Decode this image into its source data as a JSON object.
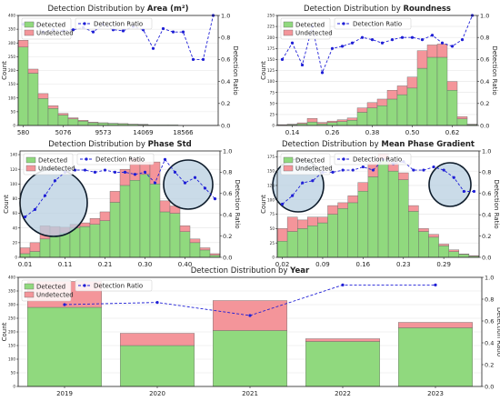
{
  "colors": {
    "detected": "#90d97e",
    "undetected": "#f4959a",
    "ratio": "#1f1fd6",
    "circle_fill": "#b8cfe0",
    "circle_stroke": "#0d1b2a"
  },
  "chart_data": [
    {
      "type": "bar",
      "title_prefix": "Detection Distribution by ",
      "title_bold": "Area (m²)",
      "xlabel": "",
      "ylabel": "Count",
      "ylabel_right": "Detection Ratio",
      "legend": [
        "Detected",
        "Undetected",
        "Detection Ratio"
      ],
      "legend_position": "top-left",
      "grid": true,
      "x_tick_labels": [
        "580",
        "5076",
        "9573",
        "14069",
        "18566"
      ],
      "x_tick_bins": [
        0,
        4,
        8,
        12,
        16
      ],
      "ylim": [
        0,
        400
      ],
      "y_ticks": [
        0,
        50,
        100,
        150,
        200,
        250,
        300,
        350,
        400
      ],
      "ratio_ticks": [
        "0.0",
        "0.2",
        "0.4",
        "0.6",
        "0.8",
        "1.0"
      ],
      "series": [
        {
          "name": "Detected",
          "values": [
            285,
            190,
            98,
            62,
            38,
            24,
            16,
            10,
            9,
            7,
            6,
            4,
            3,
            2,
            2,
            2,
            1,
            1,
            1,
            1
          ]
        },
        {
          "name": "Undetected",
          "values": [
            25,
            15,
            18,
            10,
            6,
            4,
            3,
            2,
            1,
            1,
            1,
            1,
            1,
            0,
            0,
            0,
            0,
            0,
            0,
            0
          ]
        }
      ],
      "ratio": [
        0.92,
        0.93,
        0.85,
        0.87,
        0.86,
        0.87,
        0.89,
        0.85,
        0.92,
        0.87,
        0.86,
        0.9,
        0.87,
        0.7,
        0.88,
        0.85,
        0.85,
        0.6,
        0.6,
        1.0
      ]
    },
    {
      "type": "bar",
      "title_prefix": "Detection Distribution by ",
      "title_bold": "Roundness",
      "xlabel": "",
      "ylabel": "Count",
      "ylabel_right": "Detection Ratio",
      "legend": [
        "Detected",
        "Undetected",
        "Detection Ratio"
      ],
      "legend_position": "top-left",
      "grid": true,
      "x_tick_labels": [
        "0.14",
        "0.26",
        "0.38",
        "0.50",
        "0.62"
      ],
      "x_tick_bins": [
        1,
        5,
        9,
        13,
        17
      ],
      "ylim": [
        0,
        250
      ],
      "y_ticks": [
        0,
        25,
        50,
        75,
        100,
        125,
        150,
        175,
        200,
        225,
        250
      ],
      "ratio_ticks": [
        "0.0",
        "0.2",
        "0.4",
        "0.6",
        "0.8",
        "1.0"
      ],
      "series": [
        {
          "name": "Detected",
          "values": [
            1,
            2,
            4,
            8,
            4,
            7,
            9,
            12,
            30,
            40,
            45,
            60,
            70,
            85,
            130,
            155,
            155,
            80,
            15,
            2
          ]
        },
        {
          "name": "Undetected",
          "values": [
            1,
            1,
            2,
            8,
            3,
            3,
            4,
            5,
            10,
            12,
            15,
            20,
            20,
            25,
            40,
            28,
            30,
            20,
            5,
            1
          ]
        }
      ],
      "ratio": [
        0.6,
        0.75,
        0.55,
        0.9,
        0.48,
        0.7,
        0.72,
        0.75,
        0.8,
        0.78,
        0.75,
        0.78,
        0.8,
        0.8,
        0.78,
        0.82,
        0.75,
        0.72,
        0.78,
        1.0
      ]
    },
    {
      "type": "bar",
      "title_prefix": "Detection Distribution by ",
      "title_bold": "Phase Std",
      "xlabel": "",
      "ylabel": "Count",
      "ylabel_right": "Detection Ratio",
      "legend": [
        "Detected",
        "Undetected",
        "Detection Ratio"
      ],
      "legend_position": "top-center",
      "grid": true,
      "x_tick_labels": [
        "0.01",
        "0.11",
        "0.21",
        "0.30",
        "0.40"
      ],
      "x_tick_bins": [
        0,
        4,
        8,
        12,
        16
      ],
      "ylim": [
        0,
        145
      ],
      "y_ticks": [
        0,
        20,
        40,
        60,
        80,
        100,
        120,
        140
      ],
      "ratio_ticks": [
        "0.0",
        "0.2",
        "0.4",
        "0.6",
        "0.8",
        "1.0"
      ],
      "series": [
        {
          "name": "Detected",
          "values": [
            5,
            8,
            25,
            30,
            33,
            40,
            42,
            45,
            50,
            75,
            98,
            105,
            113,
            100,
            62,
            60,
            35,
            20,
            10,
            3
          ]
        },
        {
          "name": "Undetected",
          "values": [
            8,
            12,
            18,
            12,
            8,
            5,
            5,
            8,
            12,
            15,
            22,
            30,
            17,
            30,
            15,
            10,
            8,
            5,
            3,
            2
          ]
        }
      ],
      "ratio": [
        0.38,
        0.45,
        0.58,
        0.72,
        0.8,
        0.82,
        0.82,
        0.8,
        0.82,
        0.8,
        0.8,
        0.78,
        0.8,
        0.7,
        0.92,
        0.8,
        0.7,
        0.75,
        0.65,
        0.55
      ],
      "annotations": [
        "circle-left",
        "circle-right"
      ]
    },
    {
      "type": "bar",
      "title_prefix": "Detection Distribution by ",
      "title_bold": "Mean Phase Gradient",
      "xlabel": "",
      "ylabel": "Count",
      "ylabel_right": "Detection Ratio",
      "legend": [
        "Detected",
        "Undetected",
        "Detection Ratio"
      ],
      "legend_position": "top-center",
      "grid": true,
      "x_tick_labels": [
        "0.02",
        "0.09",
        "0.16",
        "0.23",
        "0.29"
      ],
      "x_tick_bins": [
        0,
        4,
        8,
        12,
        16
      ],
      "ylim": [
        0,
        185
      ],
      "y_ticks": [
        0,
        25,
        50,
        75,
        100,
        125,
        150,
        175
      ],
      "ratio_ticks": [
        "0.0",
        "0.2",
        "0.4",
        "0.6",
        "0.8",
        "1.0"
      ],
      "series": [
        {
          "name": "Detected",
          "values": [
            28,
            45,
            50,
            55,
            60,
            75,
            85,
            95,
            115,
            140,
            170,
            150,
            135,
            80,
            45,
            35,
            20,
            10,
            5,
            2
          ]
        },
        {
          "name": "Undetected",
          "values": [
            22,
            25,
            15,
            15,
            10,
            15,
            10,
            12,
            15,
            25,
            10,
            15,
            12,
            10,
            5,
            5,
            3,
            3,
            1,
            1
          ]
        }
      ],
      "ratio": [
        0.5,
        0.58,
        0.7,
        0.72,
        0.8,
        0.8,
        0.82,
        0.82,
        0.85,
        0.82,
        0.92,
        0.88,
        0.9,
        0.82,
        0.82,
        0.85,
        0.82,
        0.75,
        0.62,
        0.62
      ],
      "annotations": [
        "circle-left",
        "circle-right"
      ]
    },
    {
      "type": "bar",
      "title_prefix": "Detection Distribution by ",
      "title_bold": "Year",
      "xlabel": "",
      "ylabel": "Count",
      "ylabel_right": "Detection Ratio",
      "legend": [
        "Detected",
        "Undetected",
        "Detection Ratio"
      ],
      "legend_position": "top-left",
      "grid": true,
      "categories": [
        "2019",
        "2020",
        "2021",
        "2022",
        "2023"
      ],
      "ylim": [
        0,
        400
      ],
      "y_ticks": [
        0,
        50,
        100,
        150,
        200,
        250,
        300,
        350,
        400
      ],
      "ratio_ticks": [
        "0.0",
        "0.2",
        "0.4",
        "0.6",
        "0.8",
        "1.0"
      ],
      "series": [
        {
          "name": "Detected",
          "values": [
            290,
            150,
            205,
            165,
            215
          ]
        },
        {
          "name": "Undetected",
          "values": [
            95,
            45,
            110,
            10,
            20
          ]
        }
      ],
      "ratio": [
        0.75,
        0.77,
        0.65,
        0.93,
        0.93
      ]
    }
  ]
}
